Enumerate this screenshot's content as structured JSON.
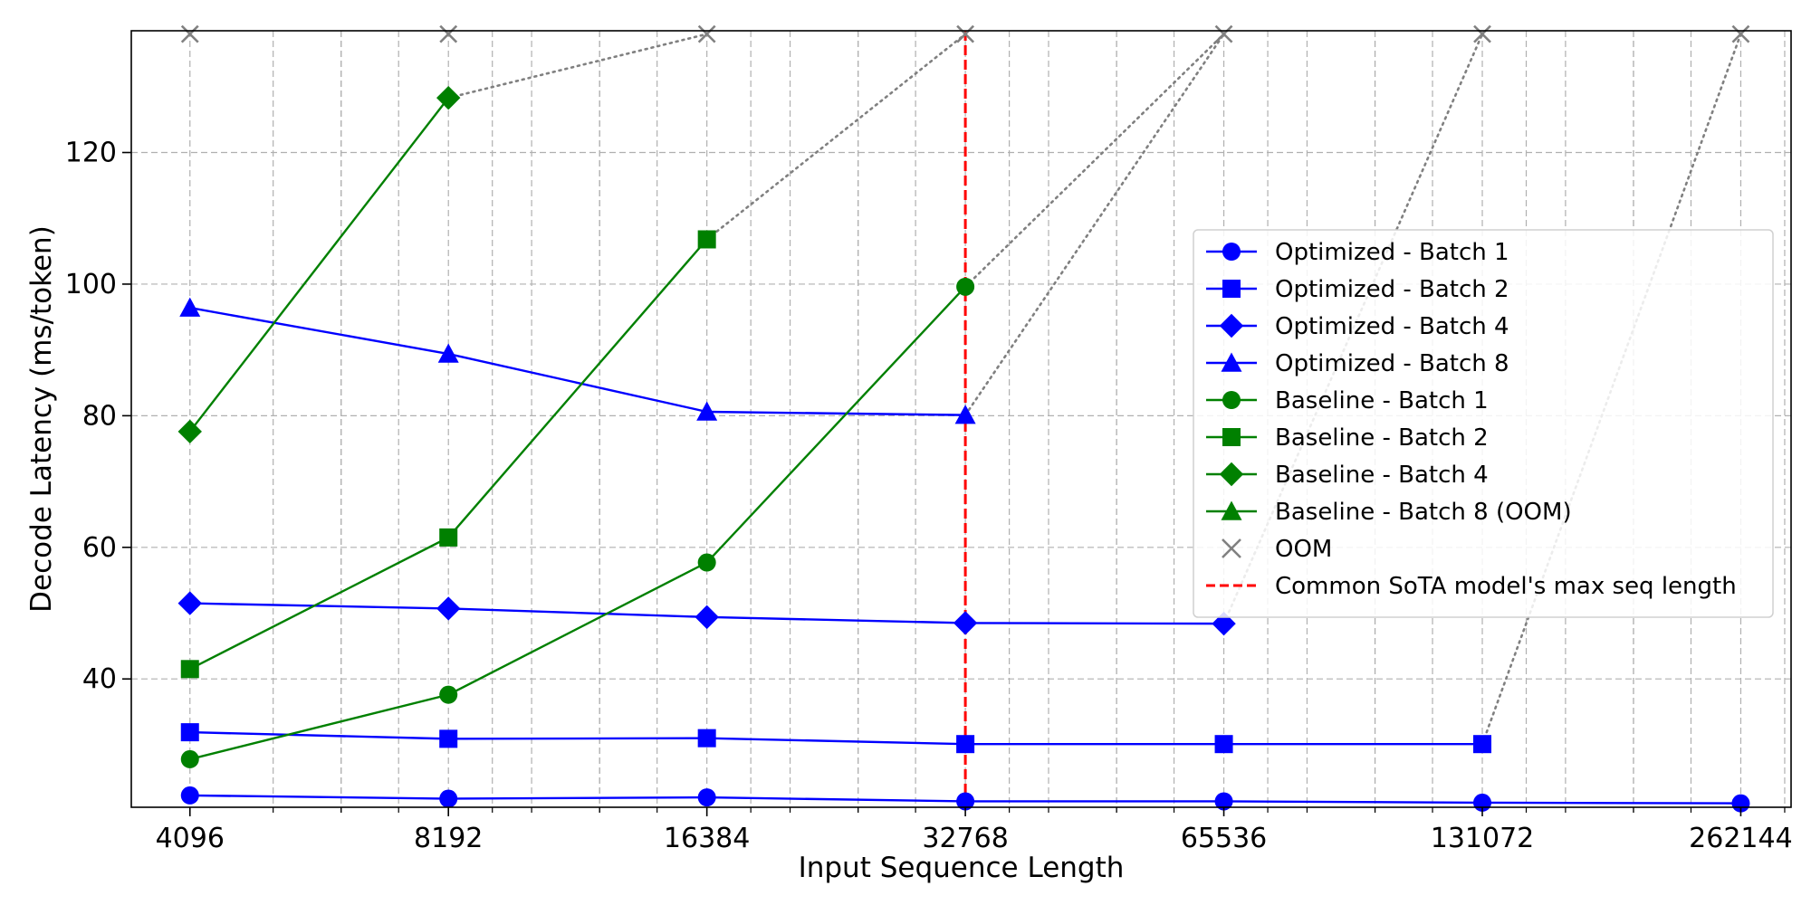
{
  "chart_data": {
    "type": "line",
    "xlabel": "Input Sequence Length",
    "ylabel": "Decode Latency (ms/token)",
    "x_scale": "log2",
    "x_ticks": [
      4096,
      8192,
      16384,
      32768,
      65536,
      131072,
      262144
    ],
    "x_tick_labels": [
      "4096",
      "8192",
      "16384",
      "32768",
      "65536",
      "131072",
      "262144"
    ],
    "y_ticks": [
      40,
      60,
      80,
      100,
      120
    ],
    "y_tick_labels": [
      "40",
      "60",
      "80",
      "100",
      "120"
    ],
    "xlim": [
      3500,
      300000
    ],
    "ylim": [
      20.5,
      138.5
    ],
    "grid": true,
    "legend_position": "center-right",
    "oom_level": 138,
    "reference_line": {
      "x": 32768,
      "label": "Common SoTA model's max seq length",
      "color": "#ff0000",
      "style": "dashed"
    },
    "series": [
      {
        "name": "Optimized - Batch 1",
        "color": "#0000ff",
        "marker": "circle",
        "points": [
          [
            4096,
            22.3
          ],
          [
            8192,
            21.8
          ],
          [
            16384,
            22.0
          ],
          [
            32768,
            21.4
          ],
          [
            65536,
            21.4
          ],
          [
            131072,
            21.2
          ],
          [
            262144,
            21.1
          ]
        ],
        "oom_at": null
      },
      {
        "name": "Optimized - Batch 2",
        "color": "#0000ff",
        "marker": "square",
        "points": [
          [
            4096,
            31.9
          ],
          [
            8192,
            30.9
          ],
          [
            16384,
            31.0
          ],
          [
            32768,
            30.1
          ],
          [
            65536,
            30.1
          ],
          [
            131072,
            30.1
          ]
        ],
        "oom_at": 262144
      },
      {
        "name": "Optimized - Batch 4",
        "color": "#0000ff",
        "marker": "diamond",
        "points": [
          [
            4096,
            51.5
          ],
          [
            8192,
            50.7
          ],
          [
            16384,
            49.4
          ],
          [
            32768,
            48.5
          ],
          [
            65536,
            48.4
          ]
        ],
        "oom_at": 131072
      },
      {
        "name": "Optimized - Batch 8",
        "color": "#0000ff",
        "marker": "triangle",
        "points": [
          [
            4096,
            96.4
          ],
          [
            8192,
            89.4
          ],
          [
            16384,
            80.6
          ],
          [
            32768,
            80.1
          ]
        ],
        "oom_at": 65536
      },
      {
        "name": "Baseline - Batch 1",
        "color": "#008000",
        "marker": "circle",
        "points": [
          [
            4096,
            27.8
          ],
          [
            8192,
            37.6
          ],
          [
            16384,
            57.7
          ],
          [
            32768,
            99.6
          ]
        ],
        "oom_at": 65536
      },
      {
        "name": "Baseline - Batch 2",
        "color": "#008000",
        "marker": "square",
        "points": [
          [
            4096,
            41.5
          ],
          [
            8192,
            61.5
          ],
          [
            16384,
            106.8
          ]
        ],
        "oom_at": 32768
      },
      {
        "name": "Baseline - Batch 4",
        "color": "#008000",
        "marker": "diamond",
        "points": [
          [
            4096,
            77.6
          ],
          [
            8192,
            128.3
          ]
        ],
        "oom_at": 16384
      },
      {
        "name": "Baseline - Batch 8 (OOM)",
        "color": "#008000",
        "marker": "triangle",
        "points": [],
        "oom_at": null
      }
    ],
    "oom_points": [
      4096,
      8192,
      16384,
      32768,
      65536,
      131072,
      262144
    ],
    "oom_legend_label": "OOM",
    "oom_color": "#808080"
  }
}
